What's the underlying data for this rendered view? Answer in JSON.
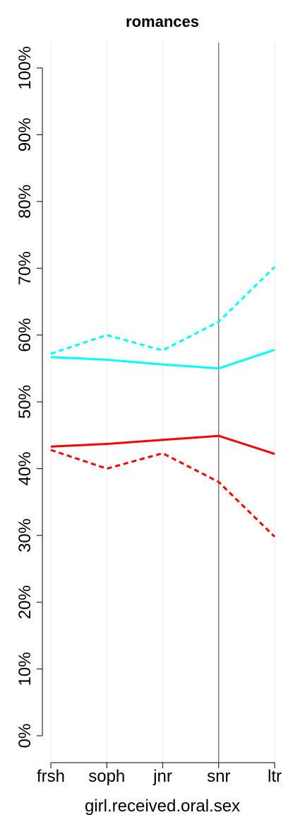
{
  "chart_data": {
    "type": "line",
    "title": "romances",
    "xlabel": "girl.received.oral.sex",
    "ylabel": "",
    "categories": [
      "frsh",
      "soph",
      "jnr",
      "snr",
      "ltr"
    ],
    "ylim": [
      0,
      100
    ],
    "yticks": [
      "0%",
      "10%",
      "20%",
      "30%",
      "40%",
      "50%",
      "60%",
      "70%",
      "80%",
      "90%",
      "100%"
    ],
    "vertical_line_at": "snr",
    "grid": "vertical",
    "series": [
      {
        "color": "#00ffff",
        "style": "dashed",
        "values": [
          57.2,
          60.0,
          57.7,
          62.0,
          70.2
        ]
      },
      {
        "color": "#00ffff",
        "style": "solid",
        "values": [
          56.7,
          56.3,
          55.6,
          55.0,
          57.8
        ]
      },
      {
        "color": "#ff0000",
        "style": "solid",
        "values": [
          43.3,
          43.7,
          44.3,
          44.9,
          42.2
        ]
      },
      {
        "color": "#ff0000",
        "style": "dashed",
        "values": [
          42.8,
          40.0,
          42.3,
          38.0,
          29.8
        ]
      }
    ]
  }
}
